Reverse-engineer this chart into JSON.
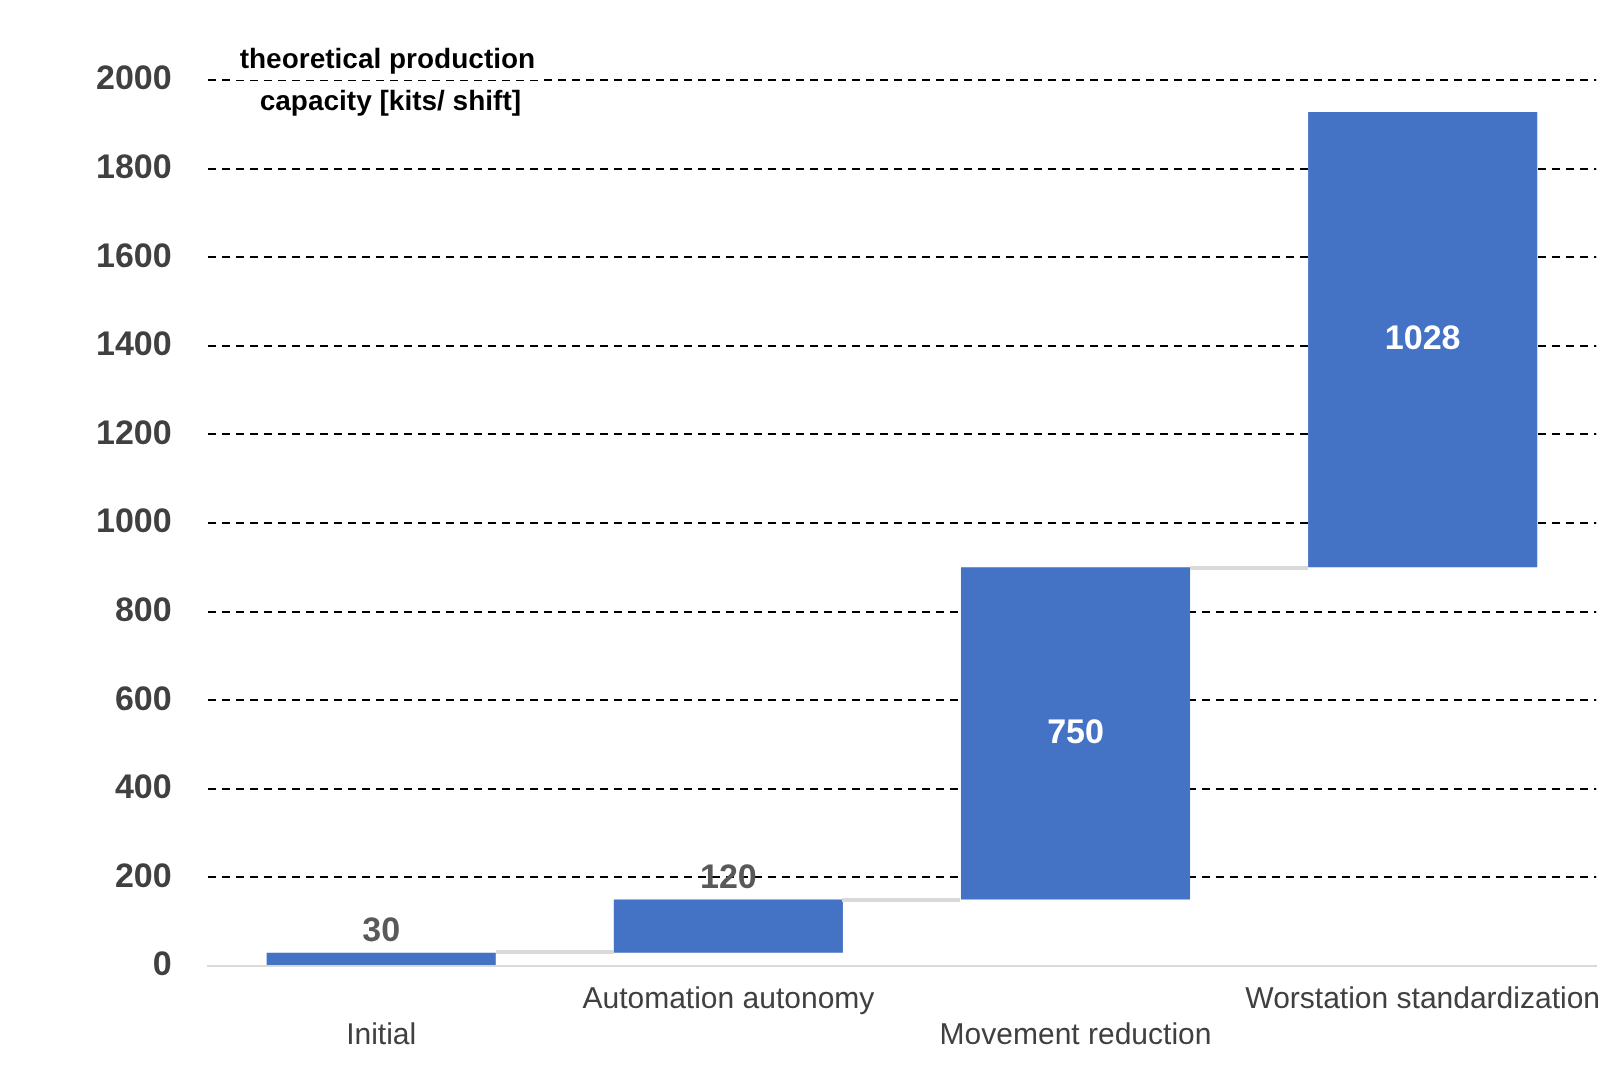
{
  "chart_data": {
    "type": "bar",
    "ylabel": "theoretical production capacity [kits/ shift]",
    "categories": [
      "Initial",
      "Automation autonomy",
      "Movement reduction",
      "Worstation standardization"
    ],
    "values": [
      30,
      120,
      750,
      1028
    ],
    "base": [
      0,
      30,
      150,
      900
    ],
    "color": "#4472c4",
    "ylim": [
      0,
      2000
    ],
    "yticks": [
      0,
      200,
      400,
      600,
      800,
      1000,
      1200,
      1400,
      1600,
      1800,
      2000
    ],
    "grid": "y",
    "legend": false,
    "data_labels": true
  }
}
